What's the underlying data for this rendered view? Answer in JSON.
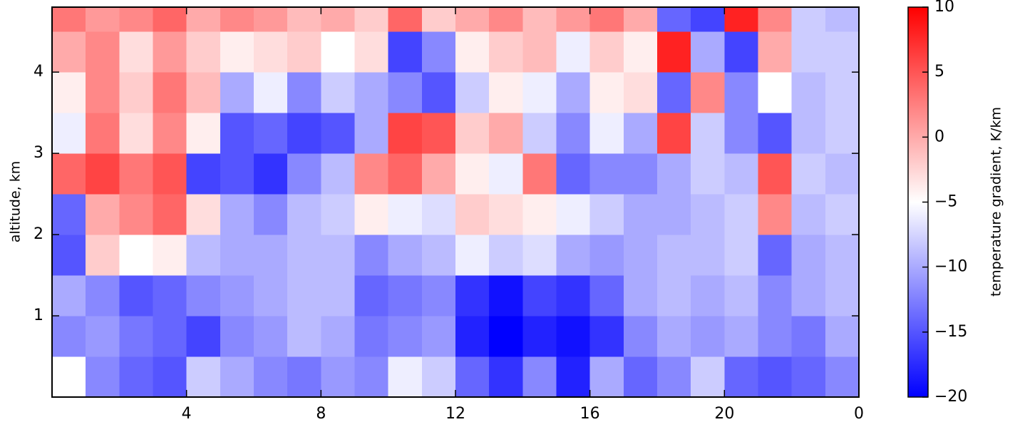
{
  "chart_data": {
    "type": "heatmap",
    "x_label": null,
    "y_label": "altitude, km",
    "x_bins": [
      0,
      1,
      2,
      3,
      4,
      5,
      6,
      7,
      8,
      9,
      10,
      11,
      12,
      13,
      14,
      15,
      16,
      17,
      18,
      19,
      20,
      21,
      22,
      23,
      24
    ],
    "y_bins": [
      0,
      0.5,
      1,
      1.5,
      2,
      2.5,
      3,
      3.5,
      4,
      4.5,
      4.8
    ],
    "values": [
      [
        -5,
        -12,
        -14,
        -15,
        -8,
        -10,
        -12,
        -13,
        -11,
        -12,
        -6,
        -8,
        -14,
        -17,
        -12,
        -18,
        -10,
        -14,
        -12,
        -8,
        -14,
        -15,
        -14,
        -12
      ],
      [
        -12,
        -11,
        -13,
        -14,
        -16,
        -12,
        -11,
        -9,
        -10,
        -13,
        -12,
        -11,
        -18,
        -20,
        -18,
        -19,
        -17,
        -12,
        -10,
        -11,
        -10,
        -12,
        -13,
        -10
      ],
      [
        -10,
        -12,
        -15,
        -14,
        -12,
        -11,
        -10,
        -9,
        -9,
        -14,
        -13,
        -12,
        -17,
        -19,
        -16,
        -17,
        -14,
        -10,
        -9,
        -10,
        -9,
        -12,
        -10,
        -9
      ],
      [
        -15,
        -2,
        -5,
        -4,
        -9,
        -10,
        -10,
        -9,
        -9,
        -12,
        -10,
        -9,
        -6,
        -8,
        -7,
        -10,
        -11,
        -10,
        -9,
        -9,
        -8,
        -14,
        -10,
        -9
      ],
      [
        -14,
        0,
        2,
        4,
        -3,
        -10,
        -12,
        -9,
        -8,
        -4,
        -6,
        -7,
        -2,
        -3,
        -4,
        -6,
        -8,
        -10,
        -10,
        -9,
        -8,
        2,
        -9,
        -8
      ],
      [
        4,
        6,
        3,
        5,
        -16,
        -15,
        -17,
        -12,
        -9,
        2,
        4,
        0,
        -4,
        -6,
        3,
        -14,
        -12,
        -12,
        -10,
        -8,
        -9,
        5,
        -8,
        -9
      ],
      [
        -6,
        3,
        -3,
        2,
        -4,
        -15,
        -14,
        -16,
        -15,
        -10,
        6,
        5,
        -2,
        0,
        -8,
        -12,
        -6,
        -10,
        6,
        -8,
        -12,
        -15,
        -9,
        -8
      ],
      [
        -4,
        2,
        -2,
        3,
        -1,
        -10,
        -6,
        -12,
        -8,
        -10,
        -12,
        -15,
        -8,
        -4,
        -6,
        -10,
        -4,
        -3,
        -14,
        2,
        -12,
        -5,
        -9,
        -8
      ],
      [
        0,
        2,
        -3,
        1,
        -2,
        -4,
        -3,
        -2,
        -5,
        -3,
        -16,
        -12,
        -4,
        -2,
        -1,
        -6,
        -2,
        -4,
        8,
        -10,
        -16,
        0,
        -8,
        -8
      ],
      [
        3,
        1,
        2,
        4,
        0,
        2,
        1,
        -1,
        0,
        -2,
        4,
        -2,
        0,
        2,
        -1,
        1,
        3,
        0,
        -14,
        -16,
        8,
        2,
        -8,
        -9
      ]
    ],
    "xlim": [
      0,
      24
    ],
    "xticks": [
      4,
      8,
      12,
      16,
      20,
      {
        "value": 24,
        "label": "0"
      }
    ],
    "ylim": [
      0,
      4.8
    ],
    "yticks": [
      1,
      2,
      3,
      4
    ],
    "colorbar": {
      "label": "temperature gradient, K/km",
      "colormap": "bwr",
      "clim": [
        -20,
        10
      ],
      "ticks": [
        {
          "value": -20,
          "label": "−20"
        },
        {
          "value": -15,
          "label": "−15"
        },
        {
          "value": -10,
          "label": "−10"
        },
        {
          "value": -5,
          "label": "−5"
        },
        0,
        5,
        10
      ]
    }
  }
}
